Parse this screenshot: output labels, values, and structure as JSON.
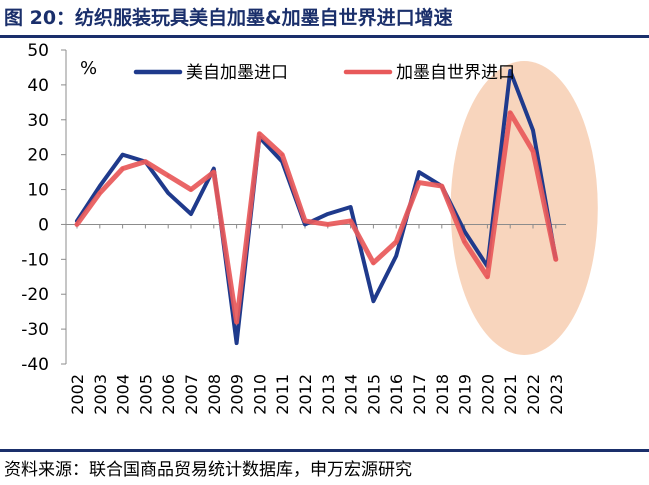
{
  "title": "图 20：纺织服装玩具美自加墨&加墨自世界进口增速",
  "source": "资料来源：联合国商品贸易统计数据库，申万宏源研究",
  "chart_data": {
    "type": "line",
    "unit_label": "%",
    "categories": [
      "2002",
      "2003",
      "2004",
      "2005",
      "2006",
      "2007",
      "2008",
      "2009",
      "2010",
      "2011",
      "2012",
      "2013",
      "2014",
      "2015",
      "2016",
      "2017",
      "2018",
      "2019",
      "2020",
      "2021",
      "2022",
      "2023"
    ],
    "ylim": [
      -40,
      50
    ],
    "yticks": [
      "50",
      "40",
      "30",
      "20",
      "10",
      "0",
      "-10",
      "-20",
      "-30",
      "-40"
    ],
    "grid": false,
    "legend_position": "top",
    "series": [
      {
        "name": "美自加墨进口",
        "color": "#1f3a8c",
        "values": [
          1,
          11,
          20,
          18,
          9,
          3,
          16,
          -34,
          25,
          18,
          0,
          3,
          5,
          -22,
          -9,
          15,
          11,
          -2,
          -12,
          44,
          27,
          -10
        ]
      },
      {
        "name": "加墨自世界进口",
        "color": "#e8595a",
        "values": [
          0,
          9,
          16,
          18,
          14,
          10,
          15,
          -28,
          26,
          20,
          1,
          0,
          1,
          -11,
          -5,
          12,
          11,
          -5,
          -15,
          32,
          21,
          -10
        ]
      }
    ],
    "annotation": {
      "type": "highlight-ellipse",
      "color": "#f8d5bd",
      "range": [
        "2019",
        "2023"
      ]
    }
  }
}
